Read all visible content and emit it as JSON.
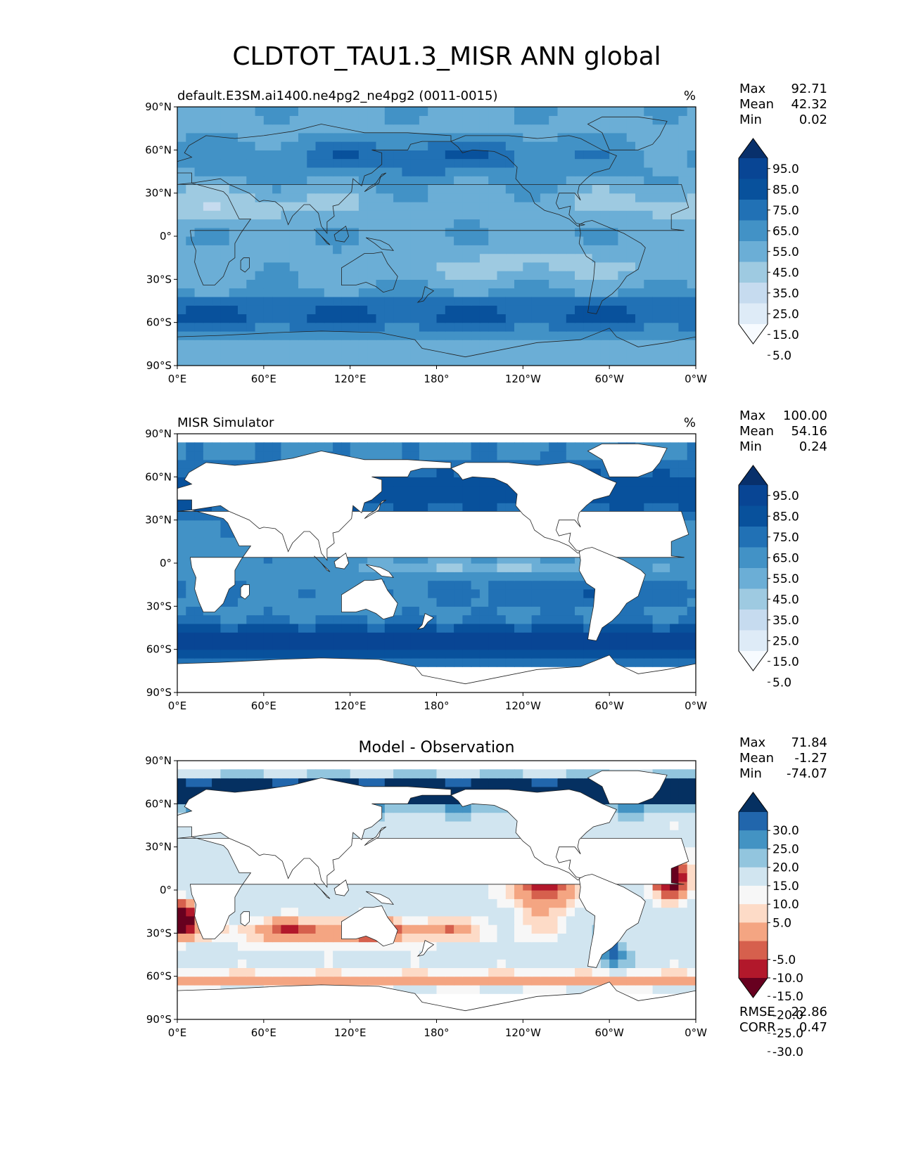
{
  "figure": {
    "title": "CLDTOT_TAU1.3_MISR ANN global"
  },
  "colors": {
    "blues": [
      "#f7fbff",
      "#deebf7",
      "#c6dbef",
      "#9ecae1",
      "#6baed6",
      "#4292c6",
      "#2171b5",
      "#08519c",
      "#084594",
      "#08306b"
    ],
    "diff": [
      "#67001f",
      "#b2182b",
      "#d6604d",
      "#f4a582",
      "#fddbc7",
      "#f7f7f7",
      "#d1e5f0",
      "#92c5de",
      "#4393c3",
      "#2166ac",
      "#053061"
    ]
  },
  "chart_data": [
    {
      "type": "heatmap",
      "id": "model",
      "title_left": "default.E3SM.ai1400.ne4pg2_ne4pg2 (0011-0015)",
      "title_right": "%",
      "title_center": "",
      "x_ticks": [
        "0°E",
        "60°E",
        "120°E",
        "180°",
        "120°W",
        "60°W",
        "0°W"
      ],
      "y_ticks": [
        "90°N",
        "60°N",
        "30°N",
        "0°",
        "30°S",
        "60°S",
        "90°S"
      ],
      "xlim": [
        0,
        360
      ],
      "ylim": [
        -90,
        90
      ],
      "stats": [
        {
          "label": "Max",
          "value": "92.71"
        },
        {
          "label": "Mean",
          "value": "42.32"
        },
        {
          "label": "Min",
          "value": "0.02"
        }
      ],
      "colorbar": {
        "labels": [
          "95.0",
          "85.0",
          "75.0",
          "65.0",
          "55.0",
          "45.0",
          "35.0",
          "25.0",
          "15.0",
          "5.0"
        ],
        "levels": [
          0,
          5,
          15,
          25,
          35,
          45,
          55,
          65,
          75,
          85,
          95,
          100
        ],
        "extend": "both"
      },
      "mask_land": false
    },
    {
      "type": "heatmap",
      "id": "obs",
      "title_left": "MISR Simulator",
      "title_right": "%",
      "title_center": "",
      "x_ticks": [
        "0°E",
        "60°E",
        "120°E",
        "180°",
        "120°W",
        "60°W",
        "0°W"
      ],
      "y_ticks": [
        "90°N",
        "60°N",
        "30°N",
        "0°",
        "30°S",
        "60°S",
        "90°S"
      ],
      "xlim": [
        0,
        360
      ],
      "ylim": [
        -90,
        90
      ],
      "stats": [
        {
          "label": "Max",
          "value": "100.00"
        },
        {
          "label": "Mean",
          "value": "54.16"
        },
        {
          "label": "Min",
          "value": "0.24"
        }
      ],
      "colorbar": {
        "labels": [
          "95.0",
          "85.0",
          "75.0",
          "65.0",
          "55.0",
          "45.0",
          "35.0",
          "25.0",
          "15.0",
          "5.0"
        ],
        "levels": [
          0,
          5,
          15,
          25,
          35,
          45,
          55,
          65,
          75,
          85,
          95,
          100
        ],
        "extend": "both"
      },
      "mask_land": true
    },
    {
      "type": "heatmap",
      "id": "diff",
      "title_left": "",
      "title_right": "",
      "title_center": "Model - Observation",
      "x_ticks": [
        "0°E",
        "60°E",
        "120°E",
        "180°",
        "120°W",
        "60°W",
        "0°W"
      ],
      "y_ticks": [
        "90°N",
        "60°N",
        "30°N",
        "0°",
        "30°S",
        "60°S",
        "90°S"
      ],
      "xlim": [
        0,
        360
      ],
      "ylim": [
        -90,
        90
      ],
      "stats": [
        {
          "label": "Max",
          "value": "71.84"
        },
        {
          "label": "Mean",
          "value": "-1.27"
        },
        {
          "label": "Min",
          "value": "-74.07"
        }
      ],
      "extra_stats": [
        {
          "label": "RMSE",
          "value": "22.86"
        },
        {
          "label": "CORR",
          "value": "0.47"
        }
      ],
      "colorbar": {
        "labels": [
          "30.0",
          "25.0",
          "20.0",
          "15.0",
          "10.0",
          "5.0",
          "-5.0",
          "-10.0",
          "-15.0",
          "-20.0",
          "-25.0",
          "-30.0"
        ],
        "levels": [
          -35,
          -30,
          -25,
          -20,
          -15,
          -10,
          -5,
          5,
          10,
          15,
          20,
          25,
          30,
          35
        ],
        "extend": "both"
      },
      "mask_land": true
    }
  ]
}
